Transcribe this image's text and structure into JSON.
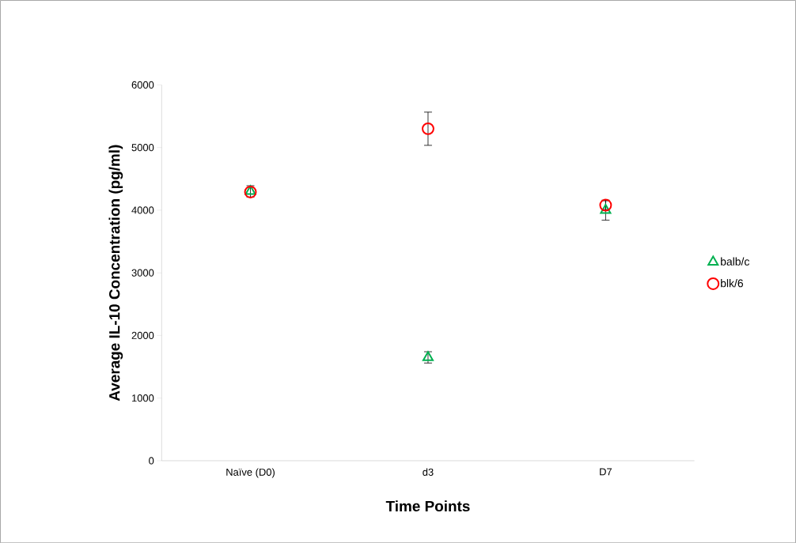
{
  "chart_data": {
    "type": "scatter",
    "xlabel": "Time Points",
    "ylabel": "Average IL-10 Concentration  (pg/ml)",
    "categories": [
      "Naïve (D0)",
      "d3",
      "D7"
    ],
    "series": [
      {
        "name": "balb/c",
        "color": "#00b050",
        "marker": "triangle",
        "values": [
          4300,
          1650,
          4000
        ],
        "errors": [
          90,
          90,
          160
        ]
      },
      {
        "name": "blk/6",
        "color": "#ff0000",
        "marker": "circle",
        "values": [
          4290,
          5300,
          4080
        ],
        "errors": [
          null,
          265,
          70
        ]
      }
    ],
    "ylim": [
      0,
      6000
    ],
    "yticks": [
      0,
      1000,
      2000,
      3000,
      4000,
      5000,
      6000
    ],
    "grid": false,
    "legend": "right"
  }
}
